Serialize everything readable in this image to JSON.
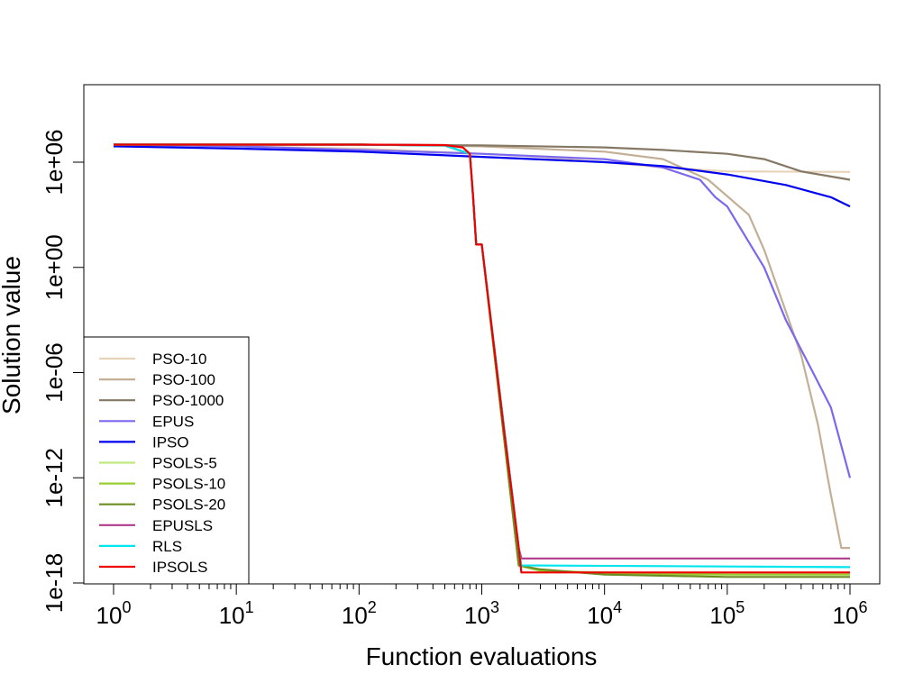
{
  "chart_data": {
    "type": "line",
    "xlabel": "Function evaluations",
    "ylabel": "Solution value",
    "x_scale": "log10",
    "y_scale": "log10",
    "xlim": [
      1,
      1000000
    ],
    "ylim": [
      1e-18,
      1000000.0
    ],
    "x_ticks": [
      {
        "base": "10",
        "exp": "0",
        "value": 1
      },
      {
        "base": "10",
        "exp": "1",
        "value": 10
      },
      {
        "base": "10",
        "exp": "2",
        "value": 100
      },
      {
        "base": "10",
        "exp": "3",
        "value": 1000
      },
      {
        "base": "10",
        "exp": "4",
        "value": 10000
      },
      {
        "base": "10",
        "exp": "5",
        "value": 100000
      },
      {
        "base": "10",
        "exp": "6",
        "value": 1000000
      }
    ],
    "y_ticks": [
      {
        "label": "1e-18",
        "value": 1e-18
      },
      {
        "label": "1e-12",
        "value": 1e-12
      },
      {
        "label": "1e-06",
        "value": 1e-06
      },
      {
        "label": "1e+00",
        "value": 1
      },
      {
        "label": "1e+06",
        "value": 1000000.0
      }
    ],
    "grid": false,
    "legend_position": "bottom-left",
    "series": [
      {
        "name": "PSO-10",
        "color": "#E8D3B9",
        "x": [
          1,
          10,
          100,
          1000,
          3000,
          10000,
          30000,
          100000,
          1000000
        ],
        "y": [
          10000000,
          8000000,
          6000000,
          3000000,
          2000000,
          1000000,
          500000,
          300000,
          280000
        ]
      },
      {
        "name": "PSO-100",
        "color": "#C4AF96",
        "x": [
          1,
          100,
          1000,
          10000,
          30000,
          70000,
          150000,
          200000,
          400000,
          550000,
          700000,
          850000,
          1000000
        ],
        "y": [
          10000000,
          10000000,
          8000000,
          4000000,
          1500000,
          100000,
          1000,
          10,
          1e-05,
          1e-09,
          1e-13,
          1e-16,
          1e-16
        ]
      },
      {
        "name": "PSO-1000",
        "color": "#857865",
        "x": [
          1,
          100,
          1000,
          10000,
          30000,
          100000,
          200000,
          400000,
          1000000
        ],
        "y": [
          10000000,
          10000000,
          9000000,
          7000000,
          5000000,
          3000000,
          1500000,
          300000,
          100000
        ]
      },
      {
        "name": "EPUS",
        "color": "#7B68EE",
        "x": [
          1,
          10,
          100,
          1000,
          10000,
          30000,
          60000,
          80000,
          100000,
          200000,
          300000,
          500000,
          700000,
          1000000
        ],
        "y": [
          10000000,
          8000000,
          5000000,
          3000000,
          1500000,
          500000,
          100000,
          10000,
          3000,
          1,
          0.001,
          1e-06,
          1e-08,
          1e-12
        ]
      },
      {
        "name": "IPSO",
        "color": "#0000EE",
        "x": [
          1,
          10,
          100,
          1000,
          10000,
          30000,
          100000,
          300000,
          700000,
          1000000
        ],
        "y": [
          8000000,
          6000000,
          4000000,
          2000000,
          1000000,
          600000,
          200000,
          50000,
          10000,
          3000
        ]
      },
      {
        "name": "PSOLS-5",
        "color": "#C0E880",
        "x": [
          1,
          100,
          500,
          800,
          850,
          900,
          1000,
          2000,
          3000,
          10000,
          100000,
          1000000
        ],
        "y": [
          10000000,
          10000000,
          9000000,
          3000000,
          10000,
          20,
          20,
          1e-17,
          5e-18,
          4e-18,
          3.5e-18,
          3.5e-18
        ]
      },
      {
        "name": "PSOLS-10",
        "color": "#9ACD32",
        "x": [
          1,
          100,
          500,
          800,
          850,
          900,
          1000,
          2000,
          3000,
          10000,
          100000,
          1000000
        ],
        "y": [
          10000000,
          10000000,
          9000000,
          3000000,
          10000,
          20,
          20,
          1e-17,
          5e-18,
          3.5e-18,
          3e-18,
          3e-18
        ]
      },
      {
        "name": "PSOLS-20",
        "color": "#6B8E23",
        "x": [
          1,
          100,
          500,
          800,
          850,
          900,
          1000,
          2000,
          3000,
          10000,
          100000,
          1000000
        ],
        "y": [
          10000000,
          10000000,
          9000000,
          3000000,
          10000,
          20,
          20,
          1e-17,
          6e-18,
          3e-18,
          2.2e-18,
          2.2e-18
        ]
      },
      {
        "name": "EPUSLS",
        "color": "#B03A8A",
        "x": [
          1,
          100,
          500,
          800,
          850,
          900,
          1000,
          2000,
          2100,
          1000000
        ],
        "y": [
          10000000,
          10000000,
          9000000,
          3000000,
          10000,
          20,
          20,
          1e-16,
          2.5e-17,
          2.5e-17
        ]
      },
      {
        "name": "RLS",
        "color": "#00E5EE",
        "x": [
          1,
          100,
          500,
          800,
          850,
          900,
          1000,
          2000,
          2100,
          1000000
        ],
        "y": [
          10000000,
          10000000,
          9000000,
          3000000,
          10000,
          20,
          20,
          1e-16,
          1e-17,
          8e-18
        ]
      },
      {
        "name": "IPSOLS",
        "color": "#EE0000",
        "x": [
          1,
          100,
          500,
          700,
          800,
          850,
          900,
          1000,
          1500,
          2000,
          2100,
          1000000
        ],
        "y": [
          10000000,
          10000000,
          9500000,
          7000000,
          3000000,
          10000,
          20,
          20,
          1e-09,
          1e-16,
          4e-18,
          4e-18
        ]
      }
    ]
  }
}
